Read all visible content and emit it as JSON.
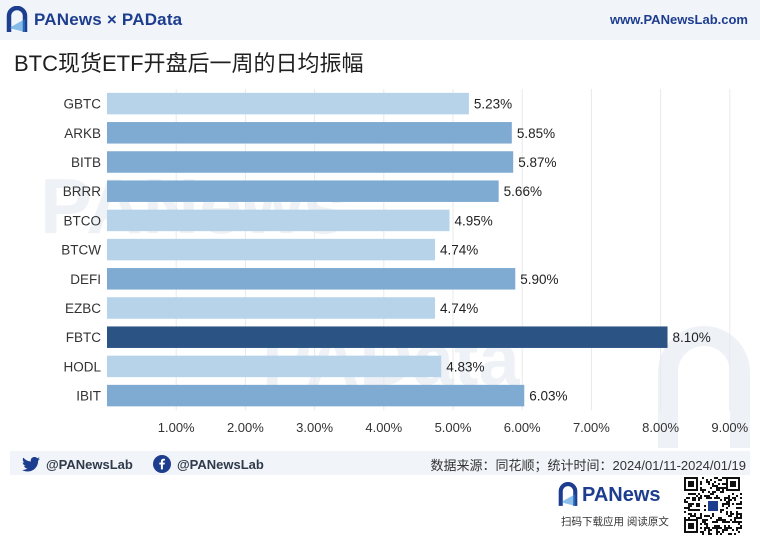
{
  "header": {
    "brand": "PANews × PAData",
    "website": "www.PANewsLab.com"
  },
  "title": "BTC现货ETF开盘后一周的日均振幅",
  "footer": {
    "twitter_handle": "@PANewsLab",
    "facebook_handle": "@PANewsLab",
    "source": "数据来源：同花顺；统计时间：2024/01/11-2024/01/19",
    "logo_text": "PANews",
    "caption": "扫码下载应用  阅读原文"
  },
  "colors": {
    "brand": "#1d3d8f",
    "bar_light": "#b6d3ea",
    "bar_medium": "#7faad1",
    "bar_dark": "#2b5383",
    "watermark": "#eef1f6"
  },
  "icons": [
    "panews-logo-icon",
    "twitter-icon",
    "facebook-icon",
    "qr-code-icon"
  ],
  "chart_data": {
    "type": "bar",
    "orientation": "horizontal",
    "categories": [
      "GBTC",
      "ARKB",
      "BITB",
      "BRRR",
      "BTCO",
      "BTCW",
      "DEFI",
      "EZBC",
      "FBTC",
      "HODL",
      "IBIT"
    ],
    "values": [
      5.23,
      5.85,
      5.87,
      5.66,
      4.95,
      4.74,
      5.9,
      4.74,
      8.1,
      4.83,
      6.03
    ],
    "value_labels": [
      "5.23%",
      "5.85%",
      "5.87%",
      "5.66%",
      "4.95%",
      "4.74%",
      "5.90%",
      "4.74%",
      "8.10%",
      "4.83%",
      "6.03%"
    ],
    "xlim": [
      0,
      9
    ],
    "x_ticks": [
      1,
      2,
      3,
      4,
      5,
      6,
      7,
      8,
      9
    ],
    "x_tick_labels": [
      "1.00%",
      "2.00%",
      "3.00%",
      "4.00%",
      "5.00%",
      "6.00%",
      "7.00%",
      "8.00%",
      "9.00%"
    ],
    "grid": "vertical",
    "legend": "none"
  }
}
